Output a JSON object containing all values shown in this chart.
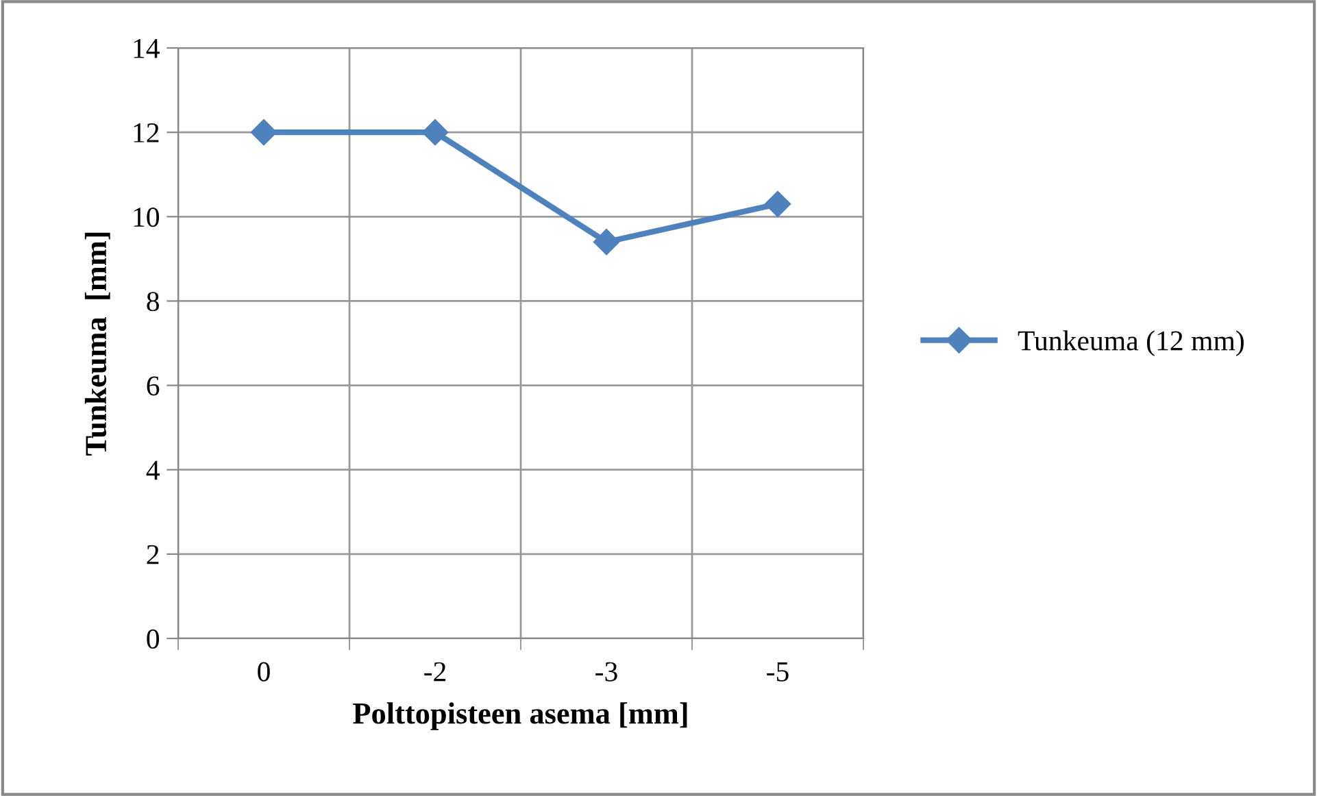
{
  "chart_data": {
    "type": "line",
    "xlabel": "Polttopisteen asema [mm]",
    "ylabel": "Tunkeuma  [mm]",
    "categories": [
      "0",
      "-2",
      "-3",
      "-5"
    ],
    "series": [
      {
        "name": "Tunkeuma (12 mm)",
        "color": "#4f81bd",
        "values": [
          12,
          12,
          9.4,
          10.3
        ]
      }
    ],
    "ylim": [
      0,
      14
    ],
    "yticks": [
      0,
      2,
      4,
      6,
      8,
      10,
      12,
      14
    ],
    "grid": true,
    "legend": "right",
    "marker": "diamond",
    "line_style": "solid"
  }
}
